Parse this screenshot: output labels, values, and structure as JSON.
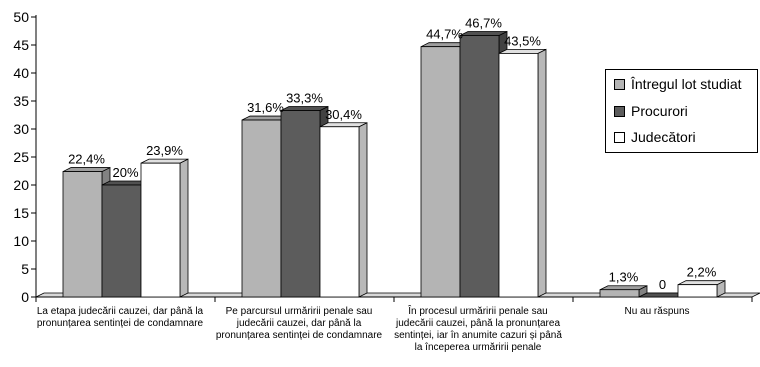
{
  "chart_data": {
    "type": "bar",
    "categories": [
      "La etapa judecării cauzei, dar până la pronunțarea sentinței de condamnare",
      "Pe parcursul urmăririi penale sau judecării cauzei, dar până la pronunțarea sentinței de condamnare",
      "În procesul urmăririi penale sau judecării cauzei, până la pronunțarea sentinței, iar în anumite cazuri și până la începerea urmăririi penale",
      "Nu au răspuns"
    ],
    "series": [
      {
        "name": "Întregul lot studiat",
        "values": [
          22.4,
          31.6,
          44.7,
          1.3
        ],
        "labels": [
          "22,4%",
          "31,6%",
          "44,7%",
          "1,3%"
        ],
        "color": "#b4b4b4"
      },
      {
        "name": "Procurori",
        "values": [
          20,
          33.3,
          46.7,
          0
        ],
        "labels": [
          "20%",
          "33,3%",
          "46,7%",
          "0"
        ],
        "color": "#5c5c5c"
      },
      {
        "name": "Judecători",
        "values": [
          23.9,
          30.4,
          43.5,
          2.2
        ],
        "labels": [
          "23,9%",
          "30,4%",
          "43,5%",
          "2,2%"
        ],
        "color": "#ffffff"
      }
    ],
    "yticks": [
      "0",
      "5",
      "10",
      "15",
      "20",
      "25",
      "30",
      "35",
      "40",
      "45",
      "50"
    ],
    "ylim": [
      0,
      50
    ],
    "grid": false,
    "legend": "right"
  }
}
